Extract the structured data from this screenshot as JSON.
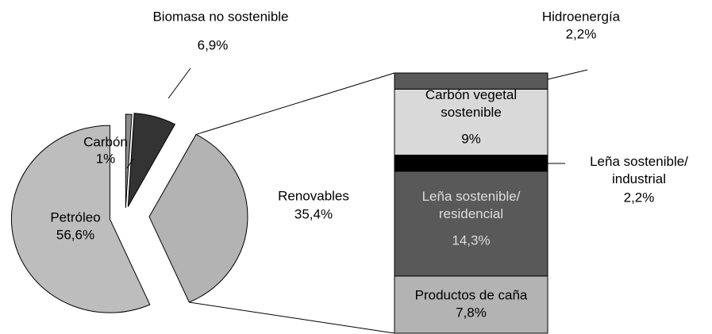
{
  "chart_data": {
    "type": "bar_of_pie",
    "categories": [
      "Carbón",
      "Biomasa no sostenible",
      "Renovables",
      "Petróleo"
    ],
    "values": [
      1,
      6.9,
      35.4,
      56.6
    ],
    "value_labels": [
      "1%",
      "6,9%",
      "35,4%",
      "56,6%"
    ],
    "colors": [
      "#8c8c8c",
      "#333333",
      "#b3b3b3",
      "#bdbdbd"
    ],
    "breakdown": {
      "categories": [
        "Productos de caña",
        "Leña sostenible/\nresidencial",
        "Leña sostenible/\nindustrial",
        "Carbón vegetal\nsostenible",
        "Hidroenergía"
      ],
      "values": [
        7.8,
        14.3,
        2.2,
        9,
        2.2
      ],
      "value_labels": [
        "7,8%",
        "14,3%",
        "2,2%",
        "9%",
        "2,2%"
      ],
      "colors": [
        "#b3b3b3",
        "#595959",
        "#000000",
        "#d9d9d9",
        "#595959"
      ]
    }
  }
}
